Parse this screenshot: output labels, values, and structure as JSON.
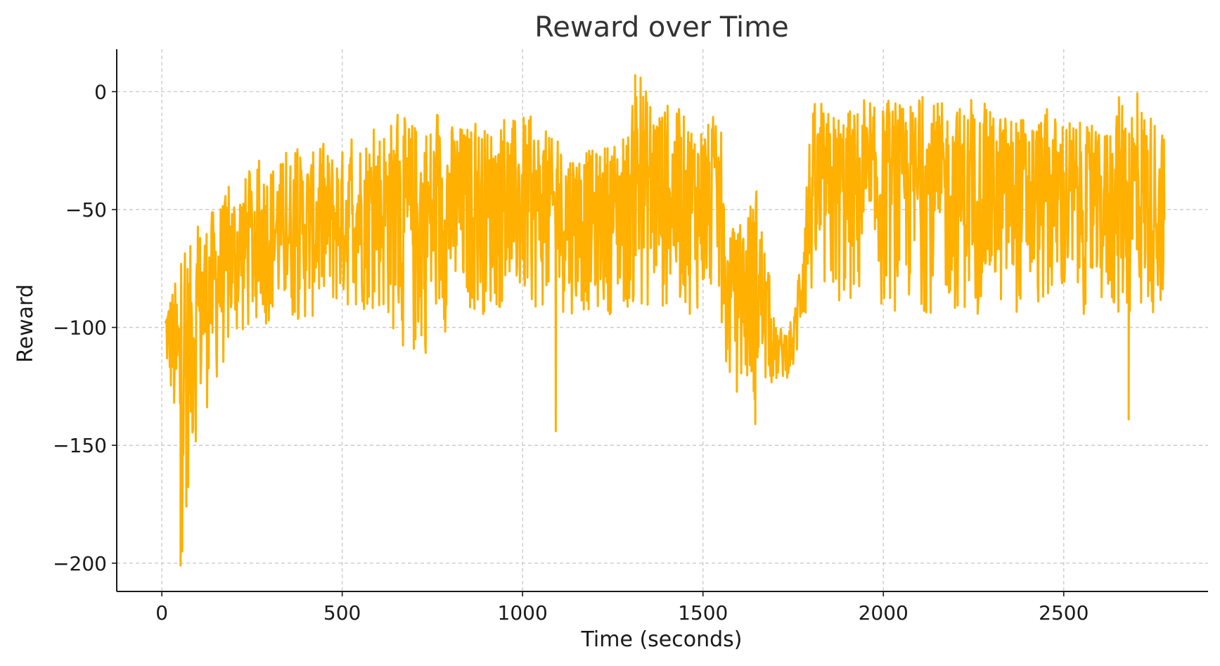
{
  "chart_data": {
    "type": "line",
    "title": "Reward over Time",
    "xlabel": "Time (seconds)",
    "ylabel": "Reward",
    "xlim": [
      -125,
      2900
    ],
    "ylim": [
      -212,
      18
    ],
    "xticks": [
      0,
      500,
      1000,
      1500,
      2000,
      2500
    ],
    "xtick_labels": [
      "0",
      "500",
      "1000",
      "1500",
      "2000",
      "2500"
    ],
    "yticks": [
      0,
      -50,
      -100,
      -150,
      -200
    ],
    "ytick_labels": [
      "0",
      "−50",
      "−100",
      "−150",
      "−200"
    ],
    "grid": true,
    "legend": "none",
    "series": [
      {
        "color": "#FFB000",
        "style": "dense noisy line",
        "x_range": [
          10,
          2780
        ],
        "upper_envelope": {
          "x": [
            10,
            50,
            100,
            150,
            200,
            250,
            300,
            400,
            500,
            600,
            650,
            700,
            800,
            900,
            1000,
            1100,
            1200,
            1300,
            1310,
            1400,
            1500,
            1550,
            1560,
            1600,
            1650,
            1700,
            1750,
            1800,
            1900,
            2000,
            2100,
            2200,
            2300,
            2400,
            2500,
            2600,
            2610,
            2650,
            2700,
            2780
          ],
          "y": [
            -90,
            -75,
            -58,
            -48,
            -40,
            -33,
            -30,
            -26,
            -24,
            -15,
            -10,
            -12,
            -13,
            -15,
            -10,
            -22,
            -25,
            -15,
            7,
            -8,
            -12,
            -15,
            -60,
            -58,
            -38,
            -100,
            -100,
            -8,
            -7,
            -6,
            -4,
            -5,
            -8,
            -10,
            -9,
            -18,
            -18,
            -2,
            -1,
            -15
          ]
        },
        "lower_envelope": {
          "x": [
            10,
            30,
            50,
            55,
            70,
            100,
            200,
            300,
            400,
            500,
            600,
            700,
            800,
            900,
            1000,
            1100,
            1200,
            1300,
            1400,
            1500,
            1550,
            1560,
            1600,
            1650,
            1700,
            1750,
            1800,
            1900,
            2000,
            2100,
            2200,
            2300,
            2400,
            2500,
            2600,
            2650,
            2700,
            2780
          ],
          "y": [
            -117,
            -140,
            -185,
            -200,
            -175,
            -145,
            -110,
            -100,
            -100,
            -95,
            -95,
            -120,
            -100,
            -95,
            -95,
            -95,
            -95,
            -95,
            -95,
            -95,
            -95,
            -125,
            -130,
            -135,
            -125,
            -120,
            -95,
            -95,
            -95,
            -95,
            -95,
            -95,
            -95,
            -95,
            -95,
            -100,
            -100,
            -95
          ]
        },
        "notable_points": [
          {
            "x": 52,
            "y": -201
          },
          {
            "x": 68,
            "y": -176
          },
          {
            "x": 1092,
            "y": -144
          },
          {
            "x": 1312,
            "y": 7
          },
          {
            "x": 1645,
            "y": -141
          },
          {
            "x": 2680,
            "y": -139
          }
        ]
      }
    ]
  }
}
